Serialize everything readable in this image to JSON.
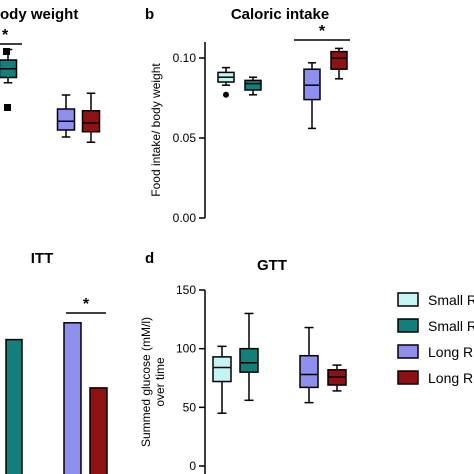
{
  "colors": {
    "small_light": "#c6f4f4",
    "small_dark": "#137f7a",
    "long_light": "#8f8fee",
    "long_dark": "#8e1213"
  },
  "panel_a": {
    "title": "ody weight",
    "significance": "*"
  },
  "panel_b": {
    "label": "b",
    "title": "Caloric intake",
    "ylabel": "Food intake/ body weight",
    "significance": "*"
  },
  "panel_c": {
    "title": "ITT",
    "significance": "*"
  },
  "panel_d": {
    "label": "d",
    "title": "GTT",
    "ylabel_line1": "Summed glucose (mM/l)",
    "ylabel_line2": "over time"
  },
  "legend": {
    "items": [
      "Small R",
      "Small R",
      "Long R",
      "Long R"
    ]
  },
  "chart_data": [
    {
      "type": "box",
      "panel": "b",
      "title": "Caloric intake",
      "ylabel": "Food intake/ body weight",
      "yticks": [
        "0.00",
        "0.05",
        "0.10"
      ],
      "ylim": [
        0,
        0.11
      ],
      "groups": [
        {
          "color": "small_light",
          "whisker_low": 0.083,
          "q1": 0.085,
          "median": 0.088,
          "q3": 0.091,
          "whisker_high": 0.094,
          "outliers": [
            0.077
          ]
        },
        {
          "color": "small_dark",
          "whisker_low": 0.077,
          "q1": 0.08,
          "median": 0.084,
          "q3": 0.086,
          "whisker_high": 0.088,
          "outliers": []
        },
        {
          "color": "long_light",
          "whisker_low": 0.056,
          "q1": 0.074,
          "median": 0.083,
          "q3": 0.093,
          "whisker_high": 0.097,
          "outliers": []
        },
        {
          "color": "long_dark",
          "whisker_low": 0.087,
          "q1": 0.093,
          "median": 0.1,
          "q3": 0.104,
          "whisker_high": 0.106,
          "outliers": []
        }
      ]
    },
    {
      "type": "box",
      "panel": "d",
      "title": "GTT",
      "ylabel": "Summed glucose (mM/l) over time",
      "yticks": [
        "0",
        "50",
        "100",
        "150"
      ],
      "ylim": [
        0,
        150
      ],
      "groups": [
        {
          "color": "small_light",
          "whisker_low": 45,
          "q1": 72,
          "median": 84,
          "q3": 93,
          "whisker_high": 102
        },
        {
          "color": "small_dark",
          "whisker_low": 56,
          "q1": 80,
          "median": 88,
          "q3": 100,
          "whisker_high": 130
        },
        {
          "color": "long_light",
          "whisker_low": 54,
          "q1": 67,
          "median": 78,
          "q3": 94,
          "whisker_high": 118
        },
        {
          "color": "long_dark",
          "whisker_low": 64,
          "q1": 69,
          "median": 76,
          "q3": 82,
          "whisker_high": 86
        }
      ]
    },
    {
      "type": "box",
      "panel": "a",
      "title": "ody weight",
      "groups": [
        {
          "color": "small_dark",
          "q1": 0.7,
          "median": 0.75,
          "q3": 0.8,
          "whisker_low": 0.67,
          "whisker_high": 0.86
        },
        {
          "color": "long_light",
          "q1": 0.4,
          "median": 0.45,
          "q3": 0.52,
          "whisker_low": 0.36,
          "whisker_high": 0.6
        },
        {
          "color": "long_dark",
          "q1": 0.39,
          "median": 0.44,
          "q3": 0.51,
          "whisker_low": 0.33,
          "whisker_high": 0.61
        }
      ]
    },
    {
      "type": "bar",
      "panel": "c",
      "title": "ITT",
      "groups": [
        {
          "color": "small_dark",
          "value": 0.64
        },
        {
          "color": "long_light",
          "value": 0.72
        },
        {
          "color": "long_dark",
          "value": 0.41
        }
      ]
    }
  ]
}
